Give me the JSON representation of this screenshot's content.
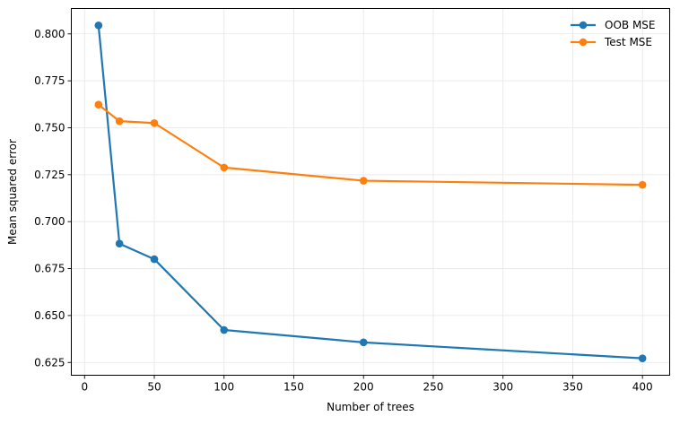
{
  "chart_data": {
    "type": "line",
    "title": "",
    "xlabel": "Number of trees",
    "ylabel": "Mean squared error",
    "x": [
      10,
      25,
      50,
      100,
      200,
      400
    ],
    "xlim": [
      -9.5,
      419.5
    ],
    "ylim": [
      0.6182,
      0.8135
    ],
    "x_ticks": [
      0,
      50,
      100,
      150,
      200,
      250,
      300,
      350,
      400
    ],
    "y_ticks": [
      0.625,
      0.65,
      0.675,
      0.7,
      0.725,
      0.75,
      0.775,
      0.8
    ],
    "x_tick_labels": [
      "0",
      "50",
      "100",
      "150",
      "200",
      "250",
      "300",
      "350",
      "400"
    ],
    "y_tick_labels": [
      "0.625",
      "0.650",
      "0.675",
      "0.700",
      "0.725",
      "0.750",
      "0.775",
      "0.800"
    ],
    "grid": true,
    "legend_position": "top-right",
    "series": [
      {
        "name": "OOB MSE",
        "color": "#1f77b4",
        "values": [
          0.8045,
          0.6883,
          0.68,
          0.6423,
          0.6357,
          0.6272
        ]
      },
      {
        "name": "Test MSE",
        "color": "#ff7f0e",
        "values": [
          0.7623,
          0.7535,
          0.7525,
          0.7288,
          0.7218,
          0.7196
        ]
      }
    ]
  }
}
